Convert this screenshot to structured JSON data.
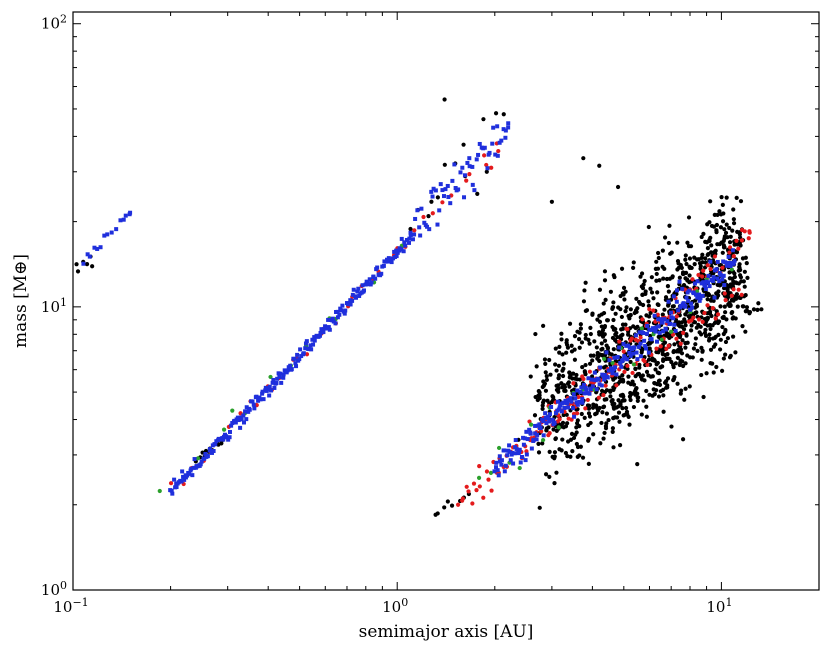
{
  "chart_data": {
    "type": "scatter",
    "title": "",
    "xlabel": "semimajor axis [AU]",
    "ylabel": "mass [M⊕]",
    "xscale": "log",
    "yscale": "log",
    "xlim": [
      0.1,
      20
    ],
    "ylim": [
      1,
      110
    ],
    "x_ticks": [
      {
        "value": 0.1,
        "base": "10",
        "exp": "−1"
      },
      {
        "value": 1,
        "base": "10",
        "exp": "0"
      },
      {
        "value": 10,
        "base": "10",
        "exp": "1"
      }
    ],
    "y_ticks": [
      {
        "value": 1,
        "base": "10",
        "exp": "0"
      },
      {
        "value": 10,
        "base": "10",
        "exp": "1"
      },
      {
        "value": 100,
        "base": "10",
        "exp": "2"
      }
    ],
    "grid": false,
    "legend": "none",
    "series": [
      {
        "color": "#000000",
        "marker": "circle",
        "segments": [
          {
            "x0": 0.102,
            "y0": 13.5,
            "x1": 0.115,
            "y1": 14.8,
            "n": 6,
            "jitter": 0.01
          },
          {
            "x0": 0.24,
            "y0": 2.85,
            "x1": 0.29,
            "y1": 3.35,
            "n": 14,
            "jitter": 0.01
          },
          {
            "x0": 1.12,
            "y0": 18.5,
            "x1": 2.1,
            "y1": 44,
            "n": 14,
            "jitter": 0.06
          },
          {
            "x0": 1.3,
            "y0": 1.78,
            "x1": 1.65,
            "y1": 2.15,
            "n": 8,
            "jitter": 0.01
          }
        ],
        "clouds": [
          {
            "x0": 2.7,
            "x1": 11.5,
            "y0": 4.2,
            "y1": 13.5,
            "spread": 0.13,
            "n": 1100
          },
          {
            "x0": 3.0,
            "x1": 13.0,
            "y0": 3.0,
            "y1": 10.3,
            "spread": 0.03,
            "n": 80
          }
        ],
        "points": [
          [
            1.4,
            54
          ],
          [
            3.75,
            33.5
          ],
          [
            4.2,
            31.5
          ],
          [
            4.8,
            26.5
          ],
          [
            3.0,
            23.5
          ],
          [
            13.0,
            10.3
          ],
          [
            12.6,
            9.8
          ]
        ]
      },
      {
        "color": "#e41a1c",
        "marker": "circle",
        "segments": [
          {
            "x0": 0.195,
            "y0": 2.15,
            "x1": 2.05,
            "y1": 38,
            "n": 38,
            "jitter": 0.015
          },
          {
            "x0": 1.55,
            "y0": 2.0,
            "x1": 12.3,
            "y1": 18.5,
            "n": 120,
            "jitter": 0.03
          },
          {
            "x0": 2.6,
            "y0": 3.45,
            "x1": 11.5,
            "y1": 11.5,
            "n": 60,
            "jitter": 0.02
          }
        ],
        "clouds": [],
        "points": [
          [
            2.05,
            35.5
          ],
          [
            1.95,
            31
          ],
          [
            12.2,
            18.5
          ]
        ]
      },
      {
        "color": "#2ca02c",
        "marker": "circle",
        "segments": [
          {
            "x0": 0.2,
            "y0": 2.3,
            "x1": 1.0,
            "y1": 15.5,
            "n": 10,
            "jitter": 0.015
          },
          {
            "x0": 1.75,
            "y0": 2.4,
            "x1": 10.5,
            "y1": 13.5,
            "n": 25,
            "jitter": 0.03
          }
        ],
        "clouds": [],
        "points": [
          [
            0.47,
            6.2
          ],
          [
            0.31,
            4.3
          ]
        ]
      },
      {
        "color": "#1f2fdc",
        "marker": "square",
        "segments": [
          {
            "x0": 0.108,
            "y0": 14.6,
            "x1": 0.15,
            "y1": 21.5,
            "n": 14,
            "jitter": 0.01
          },
          {
            "x0": 0.2,
            "y0": 2.2,
            "x1": 1.1,
            "y1": 17.5,
            "n": 230,
            "jitter": 0.012
          },
          {
            "x0": 1.1,
            "y0": 17.5,
            "x1": 2.2,
            "y1": 44.5,
            "n": 60,
            "jitter": 0.05
          },
          {
            "x0": 2.0,
            "y0": 2.7,
            "x1": 11.0,
            "y1": 14.5,
            "n": 260,
            "jitter": 0.025
          }
        ],
        "clouds": [],
        "points": [
          [
            0.15,
            21.5
          ],
          [
            2.2,
            44.5
          ]
        ]
      }
    ]
  }
}
